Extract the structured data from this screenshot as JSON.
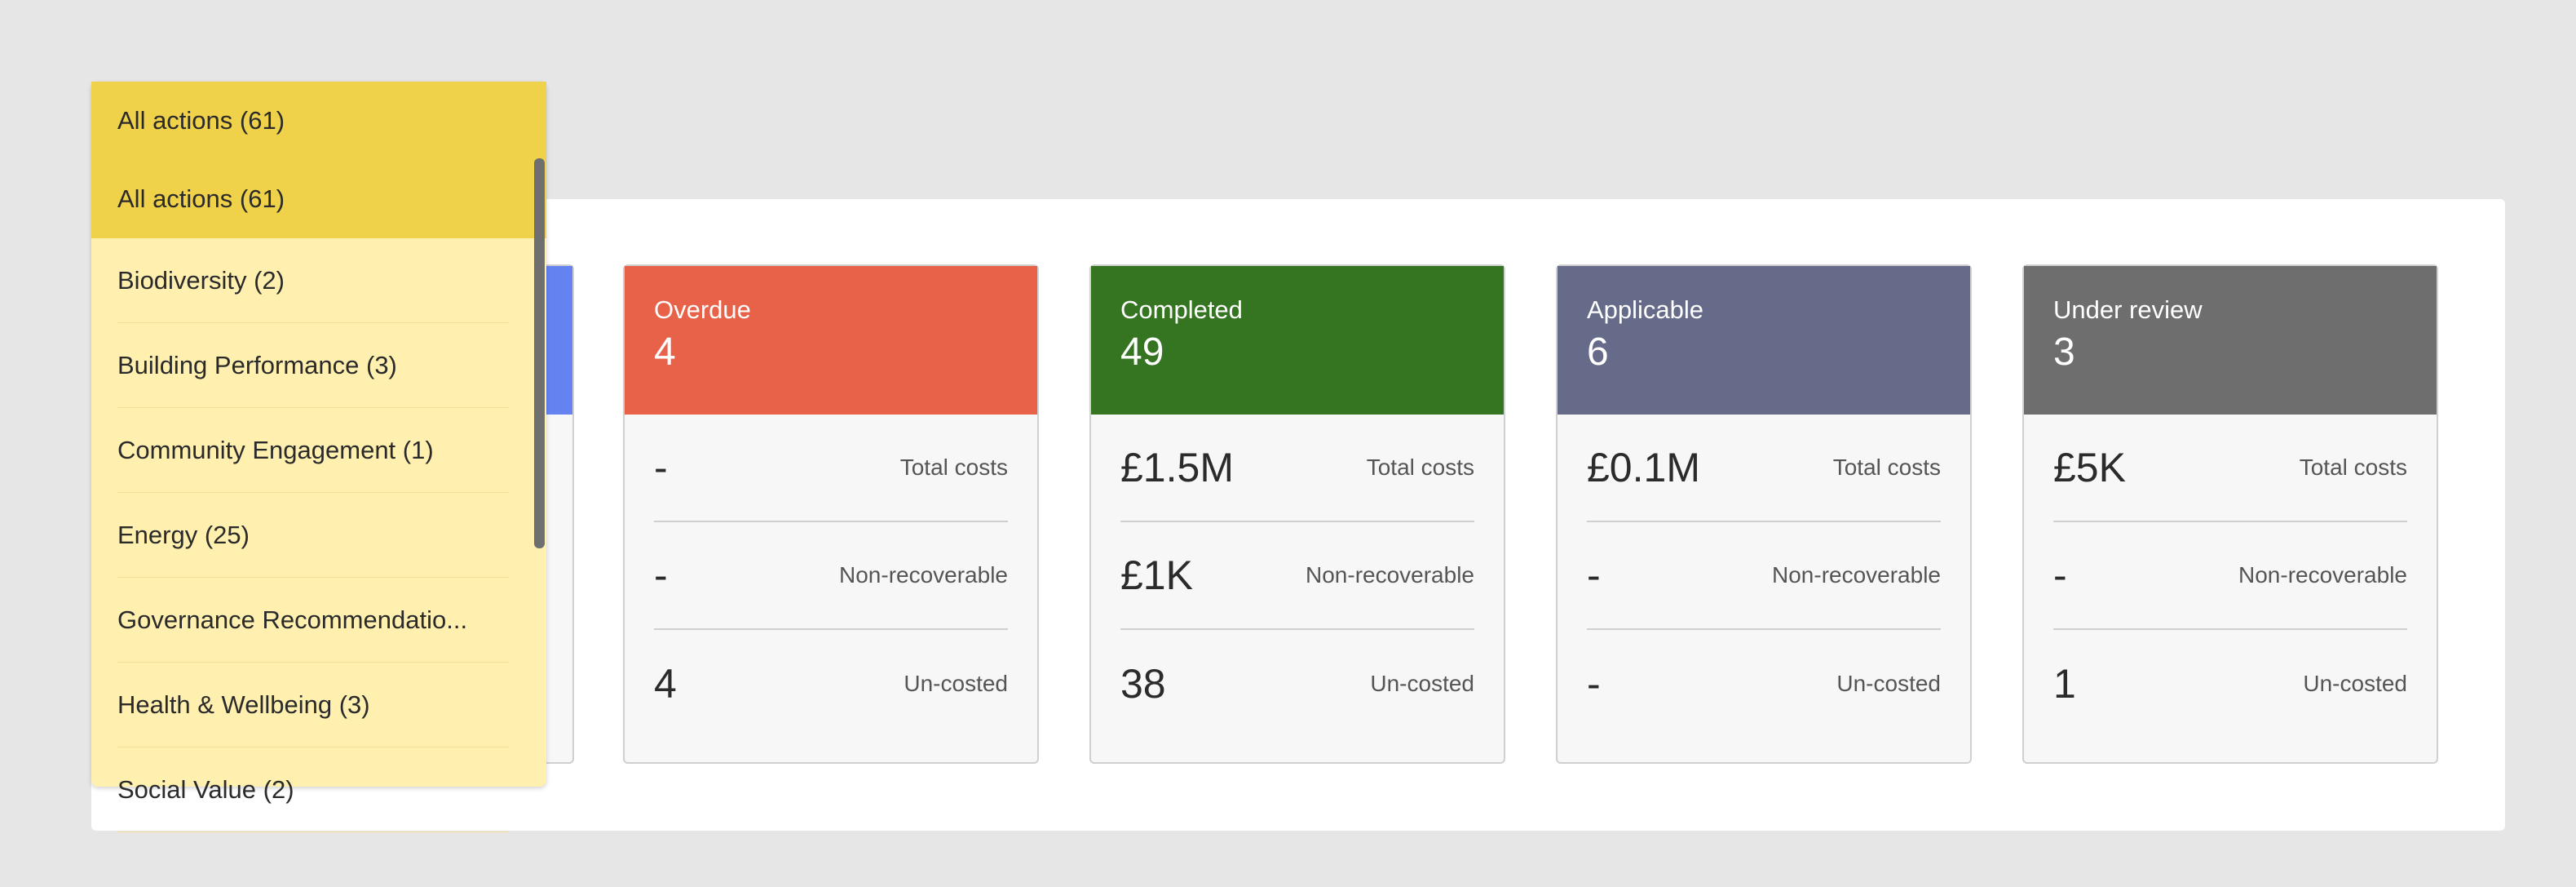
{
  "dropdown": {
    "selected": "All actions (61)",
    "items": [
      {
        "label": "All actions (61)"
      },
      {
        "label": "Biodiversity (2)"
      },
      {
        "label": "Building Performance (3)"
      },
      {
        "label": "Community Engagement (1)"
      },
      {
        "label": "Energy (25)"
      },
      {
        "label": "Governance Recommendatio..."
      },
      {
        "label": "Health & Wellbeing (3)"
      },
      {
        "label": "Social Value (2)"
      }
    ]
  },
  "cards": [
    {
      "label": "Overdue",
      "count": "4",
      "color": "#e8624a",
      "metrics": [
        {
          "value": "-",
          "label": "Total costs"
        },
        {
          "value": "-",
          "label": "Non-recoverable"
        },
        {
          "value": "4",
          "label": "Un-costed"
        }
      ]
    },
    {
      "label": "Completed",
      "count": "49",
      "color": "#357522",
      "metrics": [
        {
          "value": "£1.5M",
          "label": "Total costs"
        },
        {
          "value": "£1K",
          "label": "Non-recoverable"
        },
        {
          "value": "38",
          "label": "Un-costed"
        }
      ]
    },
    {
      "label": "Applicable",
      "count": "6",
      "color": "#656b89",
      "metrics": [
        {
          "value": "£0.1M",
          "label": "Total costs"
        },
        {
          "value": "-",
          "label": "Non-recoverable"
        },
        {
          "value": "-",
          "label": "Un-costed"
        }
      ]
    },
    {
      "label": "Under review",
      "count": "3",
      "color": "#6e6e6e",
      "metrics": [
        {
          "value": "£5K",
          "label": "Total costs"
        },
        {
          "value": "-",
          "label": "Non-recoverable"
        },
        {
          "value": "1",
          "label": "Un-costed"
        }
      ]
    }
  ]
}
